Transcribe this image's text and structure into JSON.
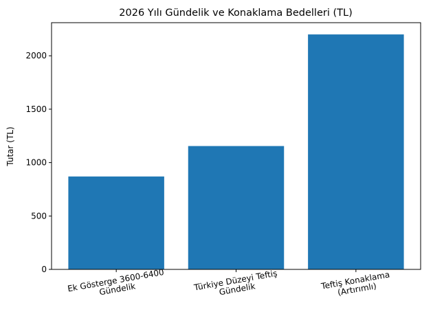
{
  "chart_data": {
    "type": "bar",
    "title": "2026 Yılı Gündelik ve Konaklama Bedelleri (TL)",
    "ylabel": "Tutar (TL)",
    "categories": [
      "Ek Gösterge 3600-6400\nGündelik",
      "Türkiye Düzeyi Teftiş\nGündelik",
      "Teftiş Konaklama\n(Artırımlı)"
    ],
    "values": [
      870,
      1155,
      2200
    ],
    "color": "#1f77b4",
    "ylim": [
      0,
      2310
    ],
    "yticks": [
      0,
      500,
      1000,
      1500,
      2000
    ],
    "grid": false
  }
}
